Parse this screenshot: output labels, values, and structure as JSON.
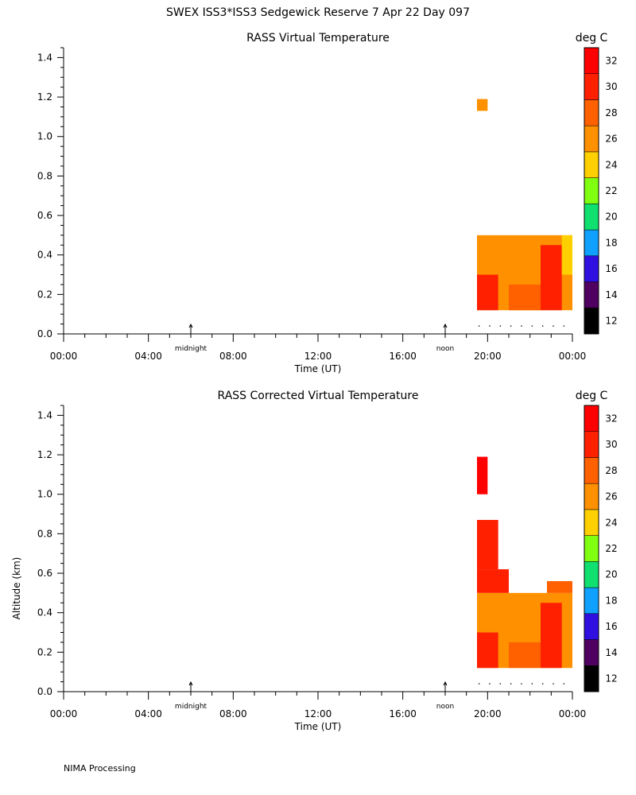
{
  "title": "SWEX ISS3*ISS3 Sedgewick Reserve   7 Apr 22 Day 097",
  "footer": "NIMA Processing",
  "chart_data": [
    {
      "type": "heatmap",
      "title": "RASS Virtual Temperature",
      "xlabel": "Time (UT)",
      "ylabel": "",
      "units": "deg C",
      "x_ticks": [
        "00:00",
        "04:00",
        "08:00",
        "12:00",
        "16:00",
        "20:00",
        "00:00"
      ],
      "x_range_hours": [
        0,
        24
      ],
      "y_ticks": [
        "0.0",
        "0.2",
        "0.4",
        "0.6",
        "0.8",
        "1.0",
        "1.2",
        "1.4"
      ],
      "y_range_km": [
        0,
        1.45
      ],
      "markers": [
        {
          "label": "midnight",
          "hour": 6
        },
        {
          "label": "noon",
          "hour": 18
        }
      ],
      "colorbar": {
        "labels": [
          "12",
          "14",
          "16",
          "18",
          "20",
          "22",
          "24",
          "26",
          "28",
          "30",
          "32"
        ],
        "colors": [
          "#000000",
          "#500060",
          "#3010e0",
          "#10a0ff",
          "#10e070",
          "#80ff10",
          "#ffd000",
          "#ff9000",
          "#ff6000",
          "#ff2000",
          "#ff0000"
        ],
        "range": [
          12,
          34
        ]
      },
      "blocks": [
        {
          "t0": 19.5,
          "t1": 20.0,
          "z0": 1.13,
          "z1": 1.19,
          "value": 27
        },
        {
          "t0": 19.5,
          "t1": 24.0,
          "z0": 0.12,
          "z1": 0.5,
          "value": 27
        },
        {
          "t0": 19.5,
          "t1": 20.5,
          "z0": 0.12,
          "z1": 0.3,
          "value": 30
        },
        {
          "t0": 21.0,
          "t1": 22.5,
          "z0": 0.12,
          "z1": 0.25,
          "value": 29
        },
        {
          "t0": 22.5,
          "t1": 23.5,
          "z0": 0.12,
          "z1": 0.45,
          "value": 30
        },
        {
          "t0": 23.5,
          "t1": 24.0,
          "z0": 0.3,
          "z1": 0.5,
          "value": 25
        }
      ],
      "dots_hours": [
        19.6,
        20.1,
        20.6,
        21.1,
        21.6,
        22.1,
        22.6,
        23.1,
        23.6
      ]
    },
    {
      "type": "heatmap",
      "title": "RASS Corrected Virtual Temperature",
      "xlabel": "Time (UT)",
      "ylabel": "Altitude (km)",
      "units": "deg C",
      "x_ticks": [
        "00:00",
        "04:00",
        "08:00",
        "12:00",
        "16:00",
        "20:00",
        "00:00"
      ],
      "x_range_hours": [
        0,
        24
      ],
      "y_ticks": [
        "0.0",
        "0.2",
        "0.4",
        "0.6",
        "0.8",
        "1.0",
        "1.2",
        "1.4"
      ],
      "y_range_km": [
        0,
        1.45
      ],
      "markers": [
        {
          "label": "midnight",
          "hour": 6
        },
        {
          "label": "noon",
          "hour": 18
        }
      ],
      "colorbar": {
        "labels": [
          "12",
          "14",
          "16",
          "18",
          "20",
          "22",
          "24",
          "26",
          "28",
          "30",
          "32"
        ],
        "colors": [
          "#000000",
          "#500060",
          "#3010e0",
          "#10a0ff",
          "#10e070",
          "#80ff10",
          "#ffd000",
          "#ff9000",
          "#ff6000",
          "#ff2000",
          "#ff0000"
        ],
        "range": [
          12,
          34
        ]
      },
      "blocks": [
        {
          "t0": 19.5,
          "t1": 20.0,
          "z0": 1.0,
          "z1": 1.19,
          "value": 32
        },
        {
          "t0": 19.5,
          "t1": 20.5,
          "z0": 0.62,
          "z1": 0.87,
          "value": 31
        },
        {
          "t0": 19.5,
          "t1": 21.0,
          "z0": 0.5,
          "z1": 0.62,
          "value": 30
        },
        {
          "t0": 19.5,
          "t1": 24.0,
          "z0": 0.12,
          "z1": 0.5,
          "value": 27
        },
        {
          "t0": 22.8,
          "t1": 24.0,
          "z0": 0.5,
          "z1": 0.56,
          "value": 28
        },
        {
          "t0": 19.5,
          "t1": 20.5,
          "z0": 0.12,
          "z1": 0.3,
          "value": 30
        },
        {
          "t0": 21.0,
          "t1": 22.5,
          "z0": 0.12,
          "z1": 0.25,
          "value": 29
        },
        {
          "t0": 22.5,
          "t1": 23.5,
          "z0": 0.12,
          "z1": 0.45,
          "value": 30
        }
      ],
      "dots_hours": [
        19.6,
        20.1,
        20.6,
        21.1,
        21.6,
        22.1,
        22.6,
        23.1,
        23.6
      ]
    }
  ]
}
